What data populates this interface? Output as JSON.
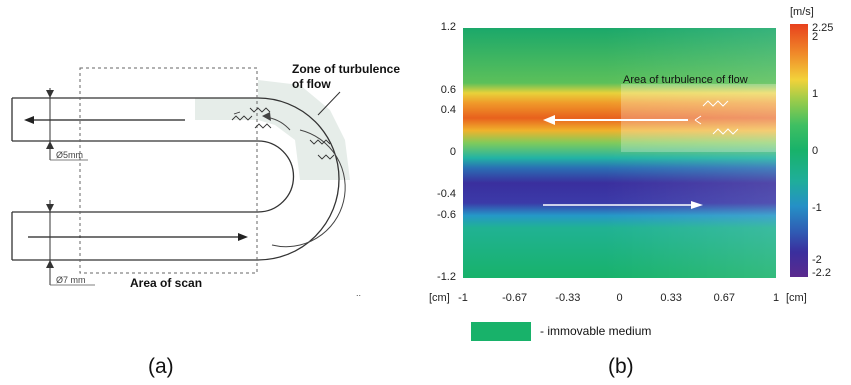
{
  "panel_a": {
    "zone_label_line1": "Zone of turbulence",
    "zone_label_line2": "of flow",
    "area_of_scan": "Area of scan",
    "dim_small": "Ø5mm",
    "dim_large": "Ø7 mm",
    "caption": "(a)",
    "dots": ".."
  },
  "panel_b": {
    "caption": "(b)",
    "overlay_label": "Area of turbulence of flow",
    "legend_text": "- immovable medium",
    "colorbar": {
      "unit": "[m/s]",
      "ticks": [
        "2.25",
        "2",
        "1",
        "0",
        "-1",
        "-2",
        "-2.2"
      ],
      "bottom_unit": "[cm]"
    },
    "chart_data": {
      "type": "heatmap",
      "xlabel": "[cm]",
      "ylabel": "",
      "x_ticks": [
        "-1",
        "-0.67",
        "-0.33",
        "0",
        "0.33",
        "0.67",
        "1"
      ],
      "y_ticks": [
        "1.2",
        "0.6",
        "0.4",
        "0",
        "-0.4",
        "-0.6",
        "-1.2"
      ],
      "xlim": [
        -1,
        1
      ],
      "ylim": [
        -1.2,
        1.2
      ],
      "clim": [
        -2.2,
        2.25
      ],
      "description_bands": [
        {
          "y_range": [
            0.15,
            0.5
          ],
          "velocity": 2.0
        },
        {
          "y_range": [
            -0.6,
            -0.2
          ],
          "velocity": -2.0
        }
      ]
    }
  },
  "colors": {
    "immovable": "#18b26a",
    "fast_positive": "#e8411d",
    "fast_negative": "#3a2f9e"
  }
}
